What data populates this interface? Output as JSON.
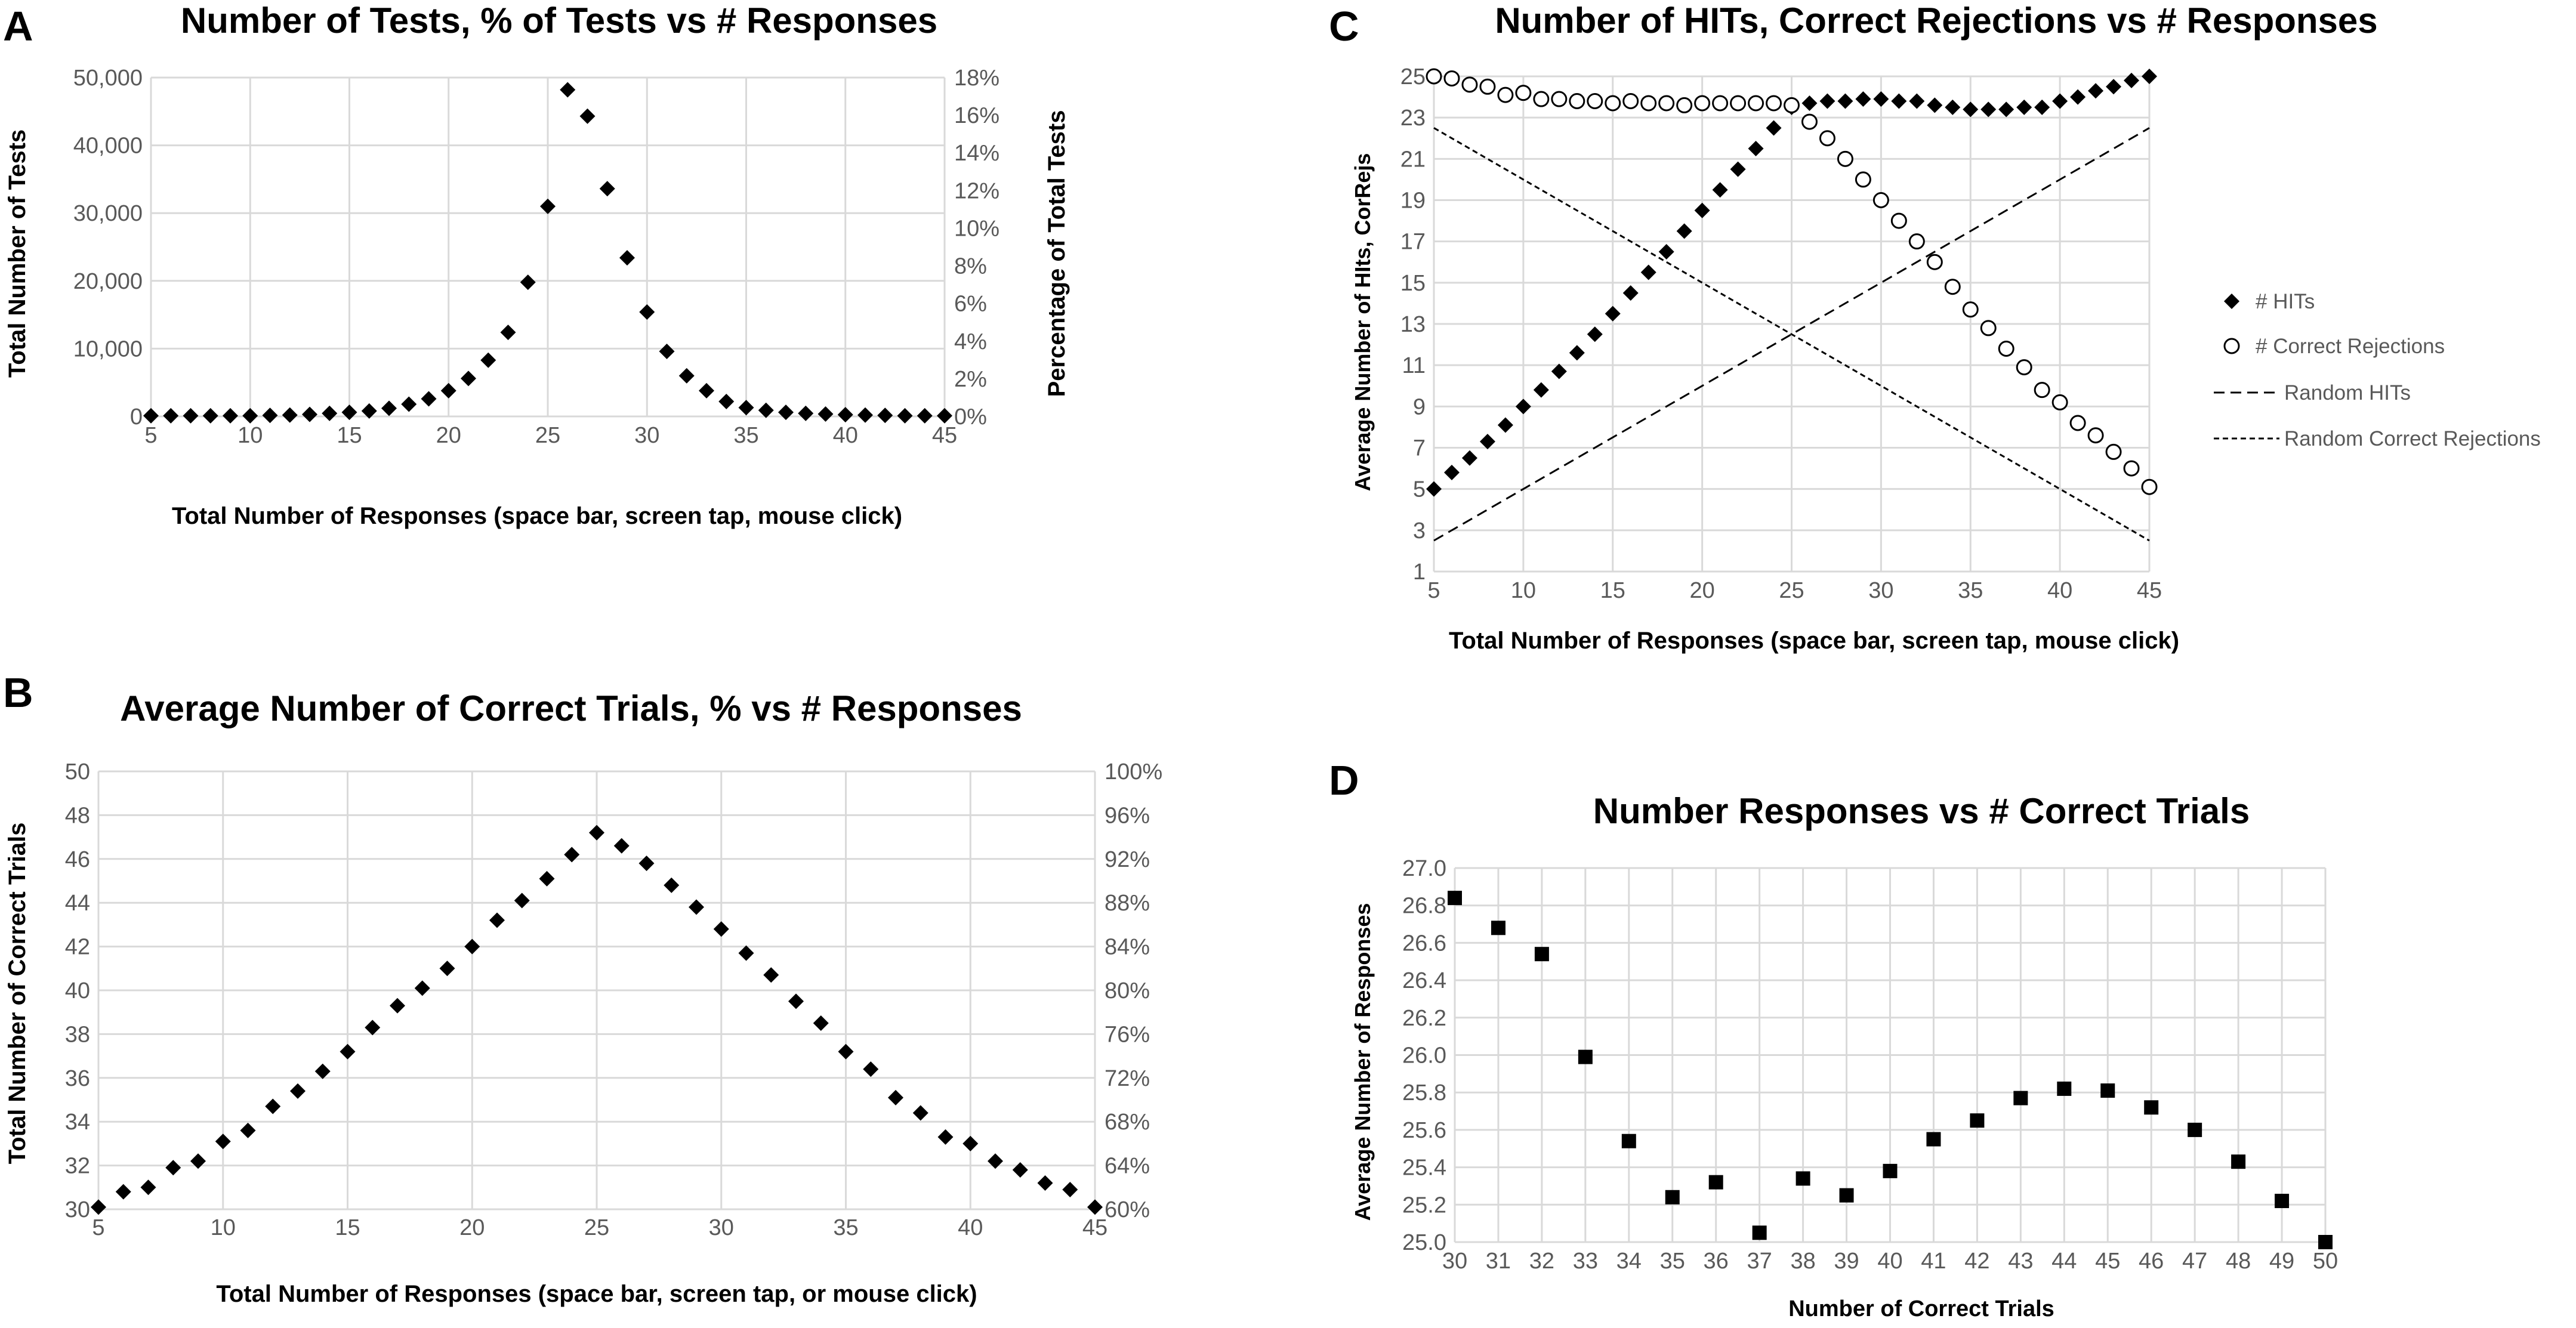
{
  "colors": {
    "grid": "#d9d9d9",
    "tick_text": "#595959",
    "marker": "#000000",
    "background": "#ffffff"
  },
  "chart_data": [
    {
      "panel": "A",
      "type": "scatter",
      "title": "Number of Tests, % of Tests vs # Responses",
      "xlabel": "Total Number of Responses (space bar, screen tap, mouse click)",
      "ylabel": "Total Number of Tests",
      "y2label": "Percentage of Total Tests",
      "xlim": [
        5,
        45
      ],
      "xticks": [
        "5",
        "10",
        "15",
        "20",
        "25",
        "30",
        "35",
        "40",
        "45"
      ],
      "ylim": [
        0,
        50000
      ],
      "yticks": [
        "0",
        "10,000",
        "20,000",
        "30,000",
        "40,000",
        "50,000"
      ],
      "y2lim": [
        0,
        18
      ],
      "y2ticks": [
        "0%",
        "2%",
        "4%",
        "6%",
        "8%",
        "10%",
        "12%",
        "14%",
        "16%",
        "18%"
      ],
      "grid": true,
      "marker": "diamond",
      "series": [
        {
          "name": "Number of Tests",
          "x": [
            5,
            6,
            7,
            8,
            9,
            10,
            11,
            12,
            13,
            14,
            15,
            16,
            17,
            18,
            19,
            20,
            21,
            22,
            23,
            24,
            25,
            26,
            27,
            28,
            29,
            30,
            31,
            32,
            33,
            34,
            35,
            36,
            37,
            38,
            39,
            40,
            41,
            42,
            43,
            44,
            45
          ],
          "y": [
            100,
            100,
            100,
            100,
            100,
            100,
            150,
            200,
            300,
            450,
            600,
            800,
            1200,
            1800,
            2600,
            3800,
            5600,
            8300,
            12400,
            19800,
            31000,
            48200,
            44300,
            33600,
            23400,
            15400,
            9600,
            6000,
            3800,
            2200,
            1300,
            900,
            600,
            450,
            350,
            250,
            200,
            150,
            100,
            100,
            100
          ]
        }
      ]
    },
    {
      "panel": "B",
      "type": "scatter",
      "title": "Average Number of Correct Trials, % vs # Responses",
      "xlabel": "Total Number of Responses (space bar, screen tap, or mouse click)",
      "ylabel": "Total Number of Correct Trials",
      "xlim": [
        5,
        45
      ],
      "xticks": [
        "5",
        "10",
        "15",
        "20",
        "25",
        "30",
        "35",
        "40",
        "45"
      ],
      "ylim": [
        30,
        50
      ],
      "yticks": [
        "30",
        "32",
        "34",
        "36",
        "38",
        "40",
        "42",
        "44",
        "46",
        "48",
        "50"
      ],
      "y2lim": [
        60,
        100
      ],
      "y2ticks": [
        "60%",
        "64%",
        "68%",
        "72%",
        "76%",
        "80%",
        "84%",
        "88%",
        "92%",
        "96%",
        "100%"
      ],
      "grid": true,
      "marker": "diamond",
      "series": [
        {
          "name": "Average Number of Correct Trials",
          "x": [
            5,
            6,
            7,
            8,
            9,
            10,
            11,
            12,
            13,
            14,
            15,
            16,
            17,
            18,
            19,
            20,
            21,
            22,
            23,
            24,
            25,
            26,
            27,
            28,
            29,
            30,
            31,
            32,
            33,
            34,
            35,
            36,
            37,
            38,
            39,
            40,
            41,
            42,
            43,
            44,
            45
          ],
          "y": [
            30.1,
            30.8,
            31.0,
            31.9,
            32.2,
            33.1,
            33.6,
            34.7,
            35.4,
            36.3,
            37.2,
            38.3,
            39.3,
            40.1,
            41.0,
            42.0,
            43.2,
            44.1,
            45.1,
            46.2,
            47.2,
            46.6,
            45.8,
            44.8,
            43.8,
            42.8,
            41.7,
            40.7,
            39.5,
            38.5,
            37.2,
            36.4,
            35.1,
            34.4,
            33.3,
            33.0,
            32.2,
            31.8,
            31.2,
            30.9,
            30.1
          ]
        }
      ]
    },
    {
      "panel": "C",
      "type": "scatter",
      "title": "Number of HITs, Correct Rejections vs # Responses",
      "xlabel": "Total Number of Responses (space bar, screen tap, mouse click)",
      "ylabel": "Average Number of HIts, CorRejs",
      "xlim": [
        5,
        45
      ],
      "xticks": [
        "5",
        "10",
        "15",
        "20",
        "25",
        "30",
        "35",
        "40",
        "45"
      ],
      "ylim": [
        1,
        25
      ],
      "yticks": [
        "1",
        "3",
        "5",
        "7",
        "9",
        "11",
        "13",
        "15",
        "17",
        "19",
        "21",
        "23",
        "25"
      ],
      "grid": true,
      "legend_position": "right",
      "series": [
        {
          "name": "# HITs",
          "marker": "diamond",
          "x": [
            5,
            6,
            7,
            8,
            9,
            10,
            11,
            12,
            13,
            14,
            15,
            16,
            17,
            18,
            19,
            20,
            21,
            22,
            23,
            24,
            25,
            26,
            27,
            28,
            29,
            30,
            31,
            32,
            33,
            34,
            35,
            36,
            37,
            38,
            39,
            40,
            41,
            42,
            43,
            44,
            45
          ],
          "y": [
            5.0,
            5.8,
            6.5,
            7.3,
            8.1,
            9.0,
            9.8,
            10.7,
            11.6,
            12.5,
            13.5,
            14.5,
            15.5,
            16.5,
            17.5,
            18.5,
            19.5,
            20.5,
            21.5,
            22.5,
            23.5,
            23.7,
            23.8,
            23.8,
            23.9,
            23.9,
            23.8,
            23.8,
            23.6,
            23.5,
            23.4,
            23.4,
            23.4,
            23.5,
            23.5,
            23.8,
            24.0,
            24.3,
            24.5,
            24.8,
            25.0
          ]
        },
        {
          "name": "# Correct Rejections",
          "marker": "open-circle",
          "x": [
            5,
            6,
            7,
            8,
            9,
            10,
            11,
            12,
            13,
            14,
            15,
            16,
            17,
            18,
            19,
            20,
            21,
            22,
            23,
            24,
            25,
            26,
            27,
            28,
            29,
            30,
            31,
            32,
            33,
            34,
            35,
            36,
            37,
            38,
            39,
            40,
            41,
            42,
            43,
            44,
            45
          ],
          "y": [
            25.0,
            24.9,
            24.6,
            24.5,
            24.1,
            24.2,
            23.9,
            23.9,
            23.8,
            23.8,
            23.7,
            23.8,
            23.7,
            23.7,
            23.6,
            23.7,
            23.7,
            23.7,
            23.7,
            23.7,
            23.6,
            22.8,
            22.0,
            21.0,
            20.0,
            19.0,
            18.0,
            17.0,
            16.0,
            14.8,
            13.7,
            12.8,
            11.8,
            10.9,
            9.8,
            9.2,
            8.2,
            7.6,
            6.8,
            6.0,
            5.1
          ]
        },
        {
          "name": "Random HITs",
          "line": "dashed",
          "x": [
            5,
            45
          ],
          "y": [
            2.5,
            22.5
          ]
        },
        {
          "name": "Random Correct Rejections",
          "line": "dotted-dash",
          "x": [
            5,
            45
          ],
          "y": [
            22.5,
            2.5
          ]
        }
      ]
    },
    {
      "panel": "D",
      "type": "scatter",
      "title": "Number Responses vs # Correct Trials",
      "xlabel": "Number of Correct Trials",
      "ylabel": "Average Number of Responses",
      "xlim": [
        30,
        50
      ],
      "xticks": [
        "30",
        "31",
        "32",
        "33",
        "34",
        "35",
        "36",
        "37",
        "38",
        "39",
        "40",
        "41",
        "42",
        "43",
        "44",
        "45",
        "46",
        "47",
        "48",
        "49",
        "50"
      ],
      "ylim": [
        25.0,
        27.0
      ],
      "yticks": [
        "25.0",
        "25.2",
        "25.4",
        "25.6",
        "25.8",
        "26.0",
        "26.2",
        "26.4",
        "26.6",
        "26.8",
        "27.0"
      ],
      "grid": true,
      "marker": "square",
      "series": [
        {
          "name": "Average Number of Responses",
          "x": [
            30,
            31,
            32,
            33,
            34,
            35,
            36,
            37,
            38,
            39,
            40,
            41,
            42,
            43,
            44,
            45,
            46,
            47,
            48,
            49,
            50
          ],
          "y": [
            26.84,
            26.68,
            26.54,
            25.99,
            25.54,
            25.24,
            25.32,
            25.05,
            25.34,
            25.25,
            25.38,
            25.55,
            25.65,
            25.77,
            25.82,
            25.81,
            25.72,
            25.6,
            25.43,
            25.22,
            25.0
          ]
        }
      ]
    }
  ]
}
